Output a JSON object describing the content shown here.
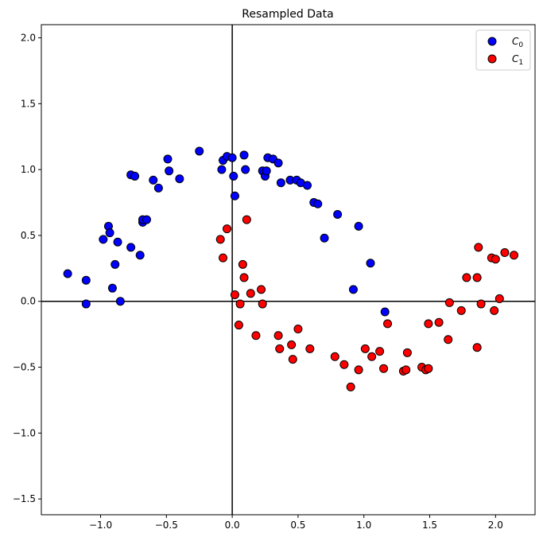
{
  "chart_data": {
    "type": "scatter",
    "title": "Resampled Data",
    "xlabel": "",
    "ylabel": "",
    "xlim": [
      -1.45,
      2.3
    ],
    "ylim": [
      -1.62,
      2.1
    ],
    "xticks": [
      -1.0,
      -0.5,
      0.0,
      0.5,
      1.0,
      1.5,
      2.0
    ],
    "xtick_labels": [
      "−1.0",
      "−0.5",
      "0.0",
      "0.5",
      "1.0",
      "1.5",
      "2.0"
    ],
    "yticks": [
      -1.5,
      -1.0,
      -0.5,
      0.0,
      0.5,
      1.0,
      1.5,
      2.0
    ],
    "ytick_labels": [
      "−1.5",
      "−1.0",
      "−0.5",
      "0.0",
      "0.5",
      "1.0",
      "1.5",
      "2.0"
    ],
    "grid": false,
    "axis_lines": {
      "x": 0,
      "y": 0
    },
    "legend": {
      "placement": "top-right"
    },
    "series": [
      {
        "name": "C0",
        "legend_main": "C",
        "legend_sub": "0",
        "color": "#0000ff",
        "points": [
          [
            -1.25,
            0.21
          ],
          [
            -1.11,
            0.16
          ],
          [
            -1.11,
            -0.02
          ],
          [
            -0.98,
            0.47
          ],
          [
            -0.94,
            0.57
          ],
          [
            -0.93,
            0.52
          ],
          [
            -0.91,
            0.1
          ],
          [
            -0.89,
            0.28
          ],
          [
            -0.87,
            0.45
          ],
          [
            -0.85,
            0.0
          ],
          [
            -0.77,
            0.96
          ],
          [
            -0.77,
            0.41
          ],
          [
            -0.74,
            0.95
          ],
          [
            -0.7,
            0.35
          ],
          [
            -0.68,
            0.6
          ],
          [
            -0.68,
            0.62
          ],
          [
            -0.65,
            0.62
          ],
          [
            -0.6,
            0.92
          ],
          [
            -0.56,
            0.86
          ],
          [
            -0.49,
            1.08
          ],
          [
            -0.48,
            0.99
          ],
          [
            -0.4,
            0.93
          ],
          [
            -0.25,
            1.14
          ],
          [
            -0.08,
            1.0
          ],
          [
            -0.07,
            1.07
          ],
          [
            -0.04,
            1.1
          ],
          [
            0.0,
            1.09
          ],
          [
            0.01,
            0.95
          ],
          [
            0.02,
            0.8
          ],
          [
            0.09,
            1.11
          ],
          [
            0.1,
            1.0
          ],
          [
            0.23,
            0.99
          ],
          [
            0.25,
            0.95
          ],
          [
            0.26,
            0.99
          ],
          [
            0.27,
            1.09
          ],
          [
            0.31,
            1.08
          ],
          [
            0.35,
            1.05
          ],
          [
            0.37,
            0.9
          ],
          [
            0.44,
            0.92
          ],
          [
            0.49,
            0.92
          ],
          [
            0.52,
            0.9
          ],
          [
            0.57,
            0.88
          ],
          [
            0.62,
            0.75
          ],
          [
            0.65,
            0.74
          ],
          [
            0.7,
            0.48
          ],
          [
            0.8,
            0.66
          ],
          [
            0.92,
            0.09
          ],
          [
            0.96,
            0.57
          ],
          [
            1.05,
            0.29
          ],
          [
            1.16,
            -0.08
          ]
        ]
      },
      {
        "name": "C1",
        "legend_main": "C",
        "legend_sub": "1",
        "color": "#ff0000",
        "points": [
          [
            -0.09,
            0.47
          ],
          [
            -0.07,
            0.33
          ],
          [
            -0.04,
            0.55
          ],
          [
            0.02,
            0.05
          ],
          [
            0.05,
            -0.18
          ],
          [
            0.06,
            -0.02
          ],
          [
            0.08,
            0.28
          ],
          [
            0.09,
            0.18
          ],
          [
            0.11,
            0.62
          ],
          [
            0.14,
            0.06
          ],
          [
            0.18,
            -0.26
          ],
          [
            0.22,
            0.09
          ],
          [
            0.23,
            -0.02
          ],
          [
            0.35,
            -0.26
          ],
          [
            0.36,
            -0.36
          ],
          [
            0.45,
            -0.33
          ],
          [
            0.46,
            -0.44
          ],
          [
            0.5,
            -0.21
          ],
          [
            0.59,
            -0.36
          ],
          [
            0.78,
            -0.42
          ],
          [
            0.85,
            -0.48
          ],
          [
            0.9,
            -0.65
          ],
          [
            0.96,
            -0.52
          ],
          [
            1.01,
            -0.36
          ],
          [
            1.06,
            -0.42
          ],
          [
            1.12,
            -0.38
          ],
          [
            1.15,
            -0.51
          ],
          [
            1.18,
            -0.17
          ],
          [
            1.3,
            -0.53
          ],
          [
            1.32,
            -0.52
          ],
          [
            1.33,
            -0.39
          ],
          [
            1.44,
            -0.5
          ],
          [
            1.47,
            -0.52
          ],
          [
            1.49,
            -0.51
          ],
          [
            1.49,
            -0.17
          ],
          [
            1.57,
            -0.16
          ],
          [
            1.64,
            -0.29
          ],
          [
            1.65,
            -0.01
          ],
          [
            1.74,
            -0.07
          ],
          [
            1.78,
            0.18
          ],
          [
            1.86,
            0.18
          ],
          [
            1.86,
            -0.35
          ],
          [
            1.87,
            0.41
          ],
          [
            1.89,
            -0.02
          ],
          [
            1.97,
            0.33
          ],
          [
            1.99,
            -0.07
          ],
          [
            2.0,
            0.32
          ],
          [
            2.03,
            0.02
          ],
          [
            2.07,
            0.37
          ],
          [
            2.14,
            0.35
          ]
        ]
      }
    ]
  }
}
